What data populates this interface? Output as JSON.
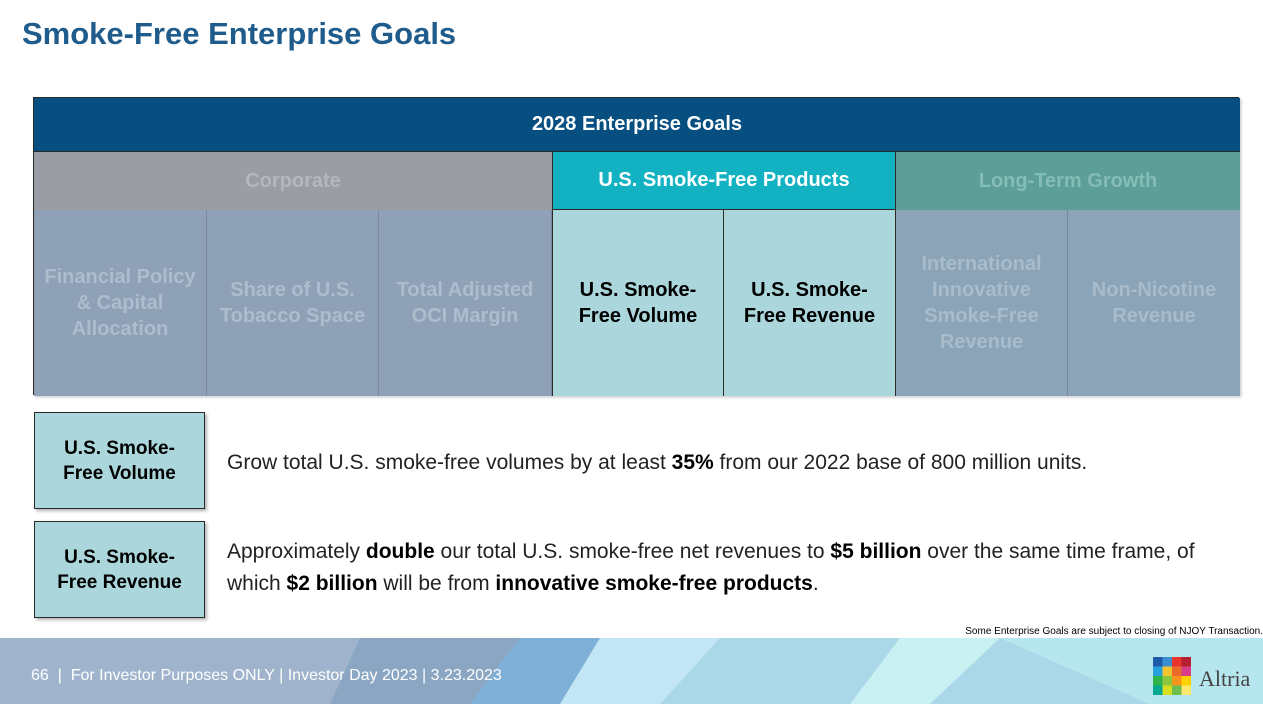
{
  "page": {
    "title": "Smoke-Free Enterprise Goals",
    "note": "Some Enterprise Goals are subject to closing of NJOY Transaction."
  },
  "goals_table": {
    "header": "2028 Enterprise Goals",
    "categories": [
      {
        "label": "Corporate"
      },
      {
        "label": "U.S. Smoke-Free Products"
      },
      {
        "label": "Long-Term Growth"
      }
    ],
    "cells": [
      {
        "label": "Financial Policy & Capital Allocation"
      },
      {
        "label": "Share of U.S. Tobacco Space"
      },
      {
        "label": "Total Adjusted OCI Margin"
      },
      {
        "label": "U.S. Smoke-Free Volume"
      },
      {
        "label": "U.S. Smoke-Free Revenue"
      },
      {
        "label": "International Innovative Smoke-Free Revenue"
      },
      {
        "label": "Non-Nicotine Revenue"
      }
    ]
  },
  "details": [
    {
      "box_label": "U.S. Smoke-Free Volume",
      "text_parts": [
        "Grow total U.S. smoke-free volumes by at least ",
        "35%",
        " from our 2022 base of 800 million units."
      ]
    },
    {
      "box_label": "U.S. Smoke-Free Revenue",
      "text_parts": [
        "Approximately ",
        "double",
        " our total U.S. smoke-free net revenues to ",
        "$5 billion",
        " over the same time frame, of which ",
        "$2 billion",
        " will be from ",
        "innovative smoke-free products",
        "."
      ]
    }
  ],
  "footer": {
    "text": "66  |  For Investor Purposes ONLY | Investor Day 2023 | 3.23.2023",
    "logo_text": "Altria",
    "logo_icon": "altria-mosaic-logo-icon"
  }
}
